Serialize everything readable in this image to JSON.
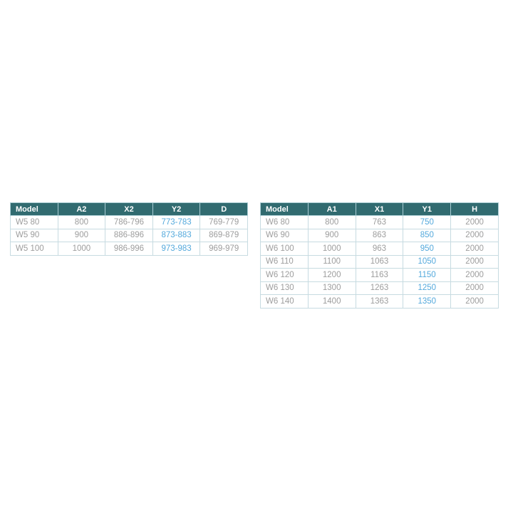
{
  "colors": {
    "header_bg": "#316b70",
    "header_text": "#ffffff",
    "body_text": "#9d9d9d",
    "highlight_text": "#54a9dc",
    "cell_border": "#c7dbe1",
    "page_bg": "#ffffff"
  },
  "tables": [
    {
      "id": "w5-spec-table",
      "headers": [
        "Model",
        "A2",
        "X2",
        "Y2",
        "D"
      ],
      "highlight_col": 3,
      "rows": [
        [
          "W5 80",
          "800",
          "786-796",
          "773-783",
          "769-779"
        ],
        [
          "W5 90",
          "900",
          "886-896",
          "873-883",
          "869-879"
        ],
        [
          "W5 100",
          "1000",
          "986-996",
          "973-983",
          "969-979"
        ]
      ]
    },
    {
      "id": "w6-spec-table",
      "headers": [
        "Model",
        "A1",
        "X1",
        "Y1",
        "H"
      ],
      "highlight_col": 3,
      "rows": [
        [
          "W6 80",
          "800",
          "763",
          "750",
          "2000"
        ],
        [
          "W6 90",
          "900",
          "863",
          "850",
          "2000"
        ],
        [
          "W6 100",
          "1000",
          "963",
          "950",
          "2000"
        ],
        [
          "W6 110",
          "1100",
          "1063",
          "1050",
          "2000"
        ],
        [
          "W6 120",
          "1200",
          "1163",
          "1150",
          "2000"
        ],
        [
          "W6 130",
          "1300",
          "1263",
          "1250",
          "2000"
        ],
        [
          "W6 140",
          "1400",
          "1363",
          "1350",
          "2000"
        ]
      ]
    }
  ]
}
